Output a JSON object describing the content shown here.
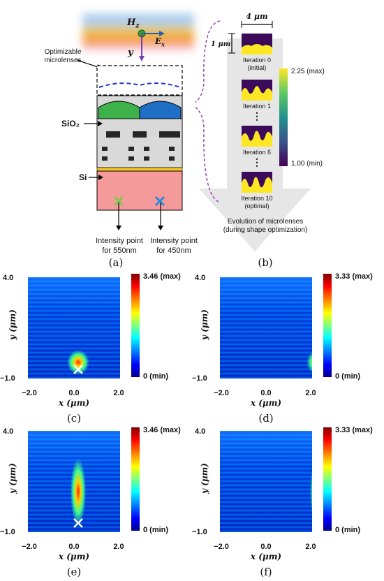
{
  "panel_a": {
    "hz": "H",
    "hz_sub": "z",
    "ex": "E",
    "ex_sub": "x",
    "y": "y",
    "microlens_label_1": "Optimizable",
    "microlens_label_2": "microlenses",
    "sio2": "SiO₂",
    "si": "Si",
    "int1_1": "Intensity point",
    "int1_2": "for 550nm",
    "int2_1": "Intensity point",
    "int2_2": "for 450nm",
    "caption": "(a)"
  },
  "panel_b": {
    "width_label": "4 μm",
    "height_label": "1 μm",
    "iters": [
      {
        "l1": "Iteration 0",
        "l2": "(initial)"
      },
      {
        "l1": "Iteration 1",
        "l2": ""
      },
      {
        "l1": "Iteration 6",
        "l2": ""
      },
      {
        "l1": "Iteration 10",
        "l2": "(optimal)"
      }
    ],
    "dots": "⋮",
    "cbar_max": "2.25 (max)",
    "cbar_min": "1.00 (min)",
    "footer_1": "Evolution of microlenses",
    "footer_2": "(during shape optimization)",
    "caption": "(b)"
  },
  "maps": [
    {
      "y_top": "4.0",
      "y_bot": "−1.0",
      "ylabel": "y (μm)",
      "x_left": "−2.0",
      "x_mid": "0.0",
      "x_right": "2.0",
      "xlabel": "x (μm)",
      "cmax": "3.46 (max)",
      "cmin": "0 (min)",
      "caption": "(c)"
    },
    {
      "y_top": "4.0",
      "y_bot": "−1.0",
      "ylabel": "y (μm)",
      "x_left": "−2.0",
      "x_mid": "0.0",
      "x_right": "2.0",
      "xlabel": "x (μm)",
      "cmax": "3.33 (max)",
      "cmin": "0 (min)",
      "caption": "(d)"
    },
    {
      "y_top": "4.0",
      "y_bot": "−1.0",
      "ylabel": "y (μm)",
      "x_left": "−2.0",
      "x_mid": "0.0",
      "x_right": "2.0",
      "xlabel": "x (μm)",
      "cmax": "3.46 (max)",
      "cmin": "0 (min)",
      "caption": "(e)"
    },
    {
      "y_top": "4.0",
      "y_bot": "−1.0",
      "ylabel": "y (μm)",
      "x_left": "−2.0",
      "x_mid": "0.0",
      "x_right": "2.0",
      "xlabel": "x (μm)",
      "cmax": "3.33 (max)",
      "cmin": "0 (min)",
      "caption": "(f)"
    }
  ],
  "colors": {
    "lens_green": "#3db24a",
    "lens_blue": "#1f6fc6",
    "oxide": "#d9d9d9",
    "silicon": "#f59a9a",
    "metal": "#262626",
    "marker_green": "#7ec850",
    "marker_blue": "#2a8ad8"
  }
}
